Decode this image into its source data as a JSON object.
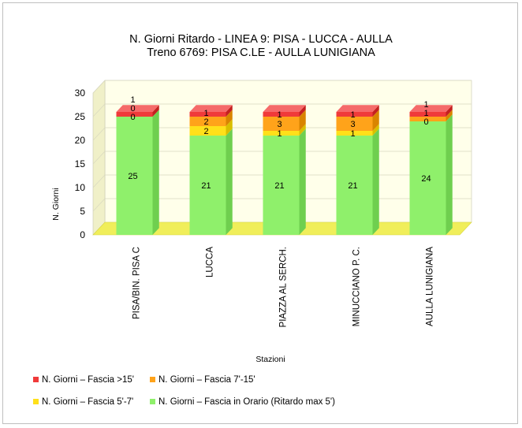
{
  "chart_data": {
    "type": "bar",
    "stacked": true,
    "three_d": true,
    "title": "N. Giorni Ritardo - LINEA 9: PISA - LUCCA - AULLA",
    "subtitle": "Treno 6769: PISA C.LE - AULLA LUNIGIANA",
    "xlabel": "Stazioni",
    "ylabel": "N. Giorni",
    "ylim": [
      0,
      30
    ],
    "yticks": [
      0,
      5,
      10,
      15,
      20,
      25,
      30
    ],
    "categories": [
      "PISA/BIN. PISA C",
      "LUCCA",
      "PIAZZA AL SERCH.",
      "MINUCCIANO P. C.",
      "AULLA LUNIGIANA"
    ],
    "series": [
      {
        "name": "N. Giorni – Fascia in Orario (Ritardo max 5')",
        "color": "#8ff06b",
        "side": "#6fcf4f",
        "top": "#b8f59a",
        "values": [
          25,
          21,
          21,
          21,
          24
        ]
      },
      {
        "name": "N. Giorni – Fascia 5'-7'",
        "color": "#ffe01a",
        "side": "#d9be00",
        "top": "#fff07a",
        "values": [
          0,
          2,
          1,
          1,
          0
        ]
      },
      {
        "name": "N. Giorni – Fascia 7'-15'",
        "color": "#ffa31a",
        "side": "#d98400",
        "top": "#ffc266",
        "values": [
          0,
          2,
          3,
          3,
          1
        ]
      },
      {
        "name": "N. Giorni – Fascia >15'",
        "color": "#f03a3a",
        "side": "#c42020",
        "top": "#f56a6a",
        "values": [
          1,
          1,
          1,
          1,
          1
        ]
      }
    ],
    "grid": true,
    "legend_position": "bottom"
  },
  "legend": {
    "r1a": "N. Giorni – Fascia >15'",
    "r1b": "N. Giorni – Fascia 7'-15'",
    "r2a": "N. Giorni – Fascia 5'-7'",
    "r2b": "N. Giorni – Fascia in Orario (Ritardo max 5')"
  }
}
